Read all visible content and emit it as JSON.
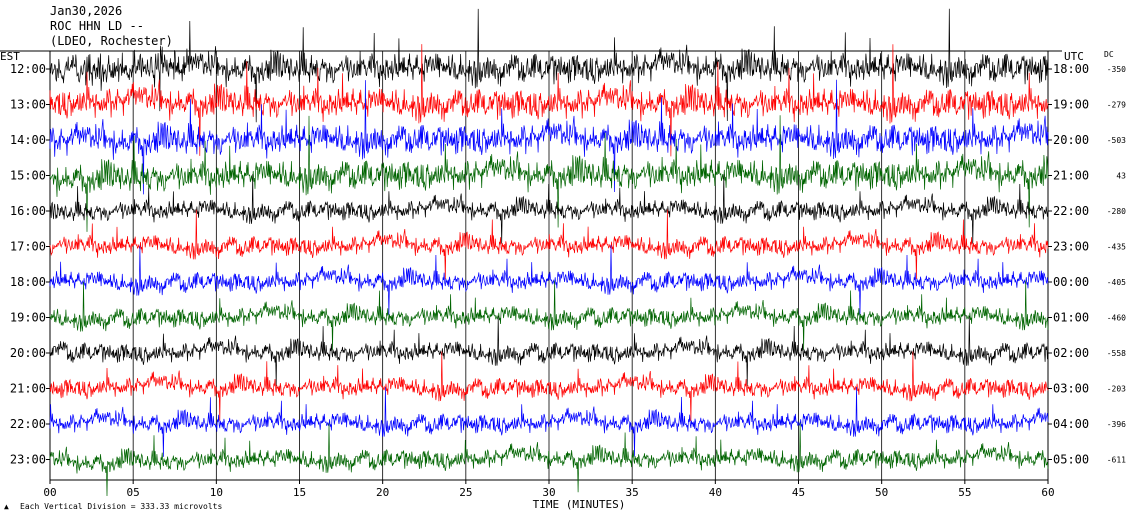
{
  "header": {
    "date": "Jan30,2026",
    "station": "ROC HHN LD --",
    "network": "(LDEO, Rochester)"
  },
  "chart_data": {
    "type": "line",
    "title": "",
    "xlabel": "TIME (MINUTES)",
    "left_axis_label": "EST",
    "right_axis_label": "UTC",
    "dc_label": "DC",
    "xlim": [
      0,
      60
    ],
    "x_ticks": [
      "00",
      "05",
      "10",
      "15",
      "20",
      "25",
      "30",
      "35",
      "40",
      "45",
      "50",
      "55",
      "60"
    ],
    "rows": [
      {
        "est": "12:00",
        "utc": "18:00",
        "dc": "-350",
        "color": "#000000"
      },
      {
        "est": "13:00",
        "utc": "19:00",
        "dc": "-279",
        "color": "#ff0000"
      },
      {
        "est": "14:00",
        "utc": "20:00",
        "dc": "-503",
        "color": "#0000ff"
      },
      {
        "est": "15:00",
        "utc": "21:00",
        "dc": "43",
        "color": "#006400"
      },
      {
        "est": "16:00",
        "utc": "22:00",
        "dc": "-280",
        "color": "#000000"
      },
      {
        "est": "17:00",
        "utc": "23:00",
        "dc": "-435",
        "color": "#ff0000"
      },
      {
        "est": "18:00",
        "utc": "00:00",
        "dc": "-405",
        "color": "#0000ff"
      },
      {
        "est": "19:00",
        "utc": "01:00",
        "dc": "-460",
        "color": "#006400"
      },
      {
        "est": "20:00",
        "utc": "02:00",
        "dc": "-558",
        "color": "#000000"
      },
      {
        "est": "21:00",
        "utc": "03:00",
        "dc": "-203",
        "color": "#ff0000"
      },
      {
        "est": "22:00",
        "utc": "04:00",
        "dc": "-396",
        "color": "#0000ff"
      },
      {
        "est": "23:00",
        "utc": "05:00",
        "dc": "-611",
        "color": "#006400"
      }
    ],
    "scale_note": "Each Vertical Division =   333.33 microvolts",
    "grid": true
  }
}
